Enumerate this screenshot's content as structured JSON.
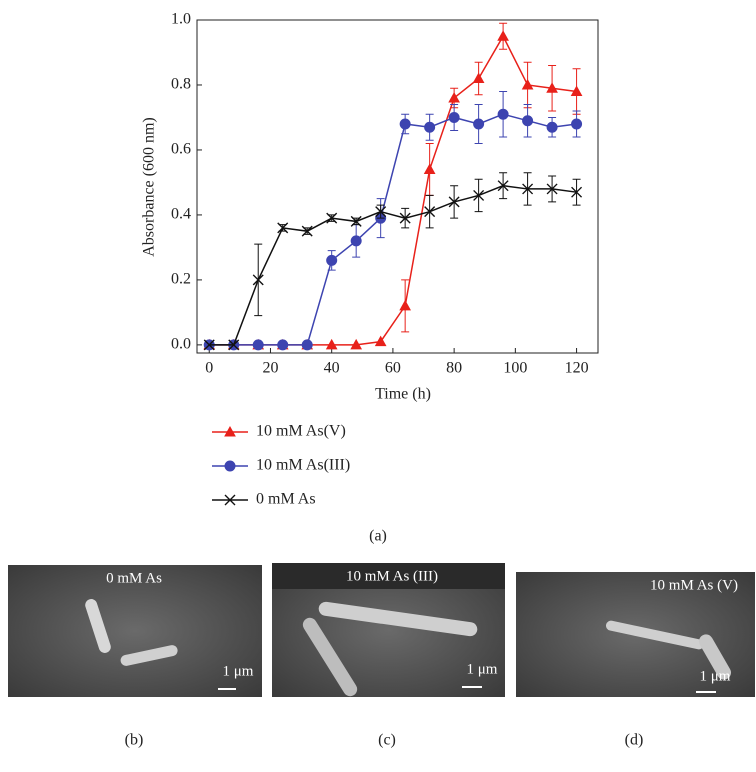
{
  "chart_data": {
    "type": "line",
    "xlabel": "Time (h)",
    "ylabel": "Absorbance (600 nm)",
    "x": [
      0,
      8,
      16,
      24,
      32,
      40,
      48,
      56,
      64,
      72,
      80,
      88,
      96,
      104,
      112,
      120
    ],
    "series": [
      {
        "name": "10 mM As(V)",
        "color": "#e8211a",
        "marker": "triangle",
        "values": [
          0,
          0,
          0,
          0,
          0,
          0,
          0,
          0.01,
          0.12,
          0.54,
          0.76,
          0.82,
          0.95,
          0.8,
          0.79,
          0.78
        ],
        "errors": [
          0,
          0,
          0,
          0,
          0,
          0,
          0,
          0,
          0.08,
          0.08,
          0.03,
          0.05,
          0.04,
          0.07,
          0.07,
          0.07
        ]
      },
      {
        "name": "10 mM As(III)",
        "color": "#3d44b0",
        "marker": "circle",
        "values": [
          0,
          0,
          0,
          0,
          0,
          0.26,
          0.32,
          0.39,
          0.68,
          0.67,
          0.7,
          0.68,
          0.71,
          0.69,
          0.67,
          0.68
        ],
        "errors": [
          0,
          0,
          0,
          0,
          0,
          0.03,
          0.05,
          0.06,
          0.03,
          0.04,
          0.04,
          0.06,
          0.07,
          0.05,
          0.03,
          0.04
        ]
      },
      {
        "name": "0 mM As",
        "color": "#111111",
        "marker": "x",
        "values": [
          0,
          0,
          0.2,
          0.36,
          0.35,
          0.39,
          0.38,
          0.41,
          0.39,
          0.41,
          0.44,
          0.46,
          0.49,
          0.48,
          0.48,
          0.47
        ],
        "errors": [
          0,
          0,
          0.11,
          0.01,
          0.01,
          0.01,
          0.01,
          0.02,
          0.03,
          0.05,
          0.05,
          0.05,
          0.04,
          0.05,
          0.04,
          0.04
        ]
      }
    ],
    "xlim": [
      -4,
      127
    ],
    "ylim": [
      -0.025,
      1.0
    ],
    "xticks": [
      0,
      20,
      40,
      60,
      80,
      100,
      120
    ],
    "yticks": [
      {
        "value": 0,
        "label": "0.0"
      },
      0.2,
      0.4,
      0.6,
      0.8,
      {
        "value": 1.0,
        "label": "1.0"
      }
    ],
    "caption": "(a)"
  },
  "panels": [
    {
      "label": "0 mM As",
      "scale": "1 μm",
      "caption": "(b)"
    },
    {
      "label": "10 mM As (III)",
      "scale": "1 μm",
      "caption": "(c)"
    },
    {
      "label": "10 mM As (V)",
      "scale": "1 μm",
      "caption": "(d)"
    }
  ]
}
